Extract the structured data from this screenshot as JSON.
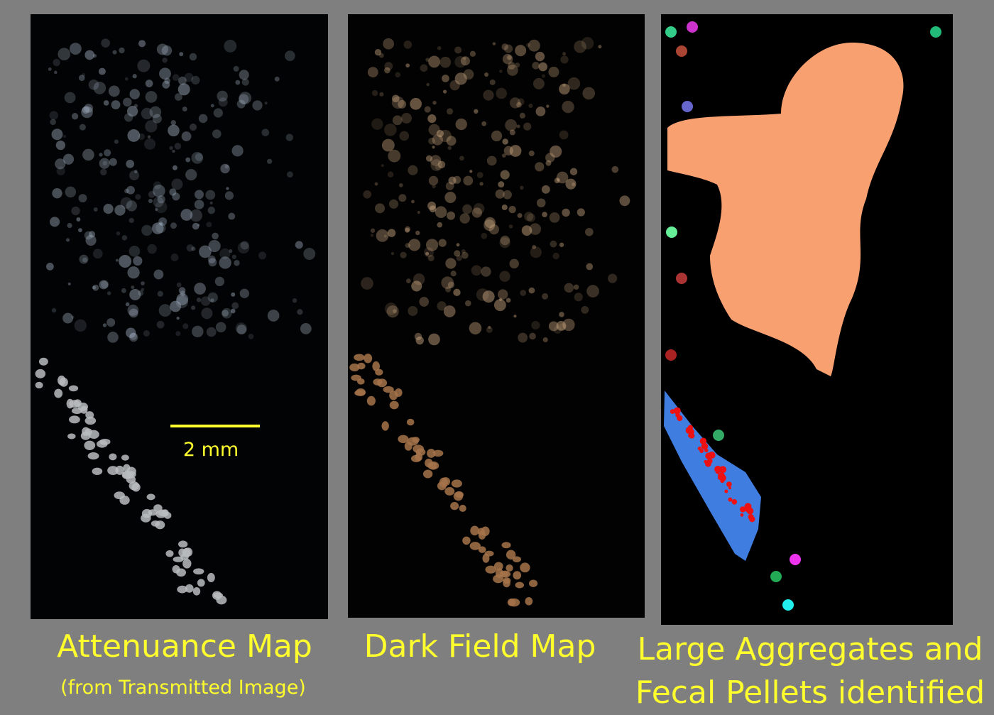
{
  "panels": [
    {
      "title": "Attenuance Map",
      "subtitle": "(from Transmitted Image)",
      "scale_bar_label": "2 mm"
    },
    {
      "title": "Dark Field Map"
    },
    {
      "title_lines": [
        "Large Aggregates and",
        "Fecal Pellets identified"
      ]
    }
  ]
}
